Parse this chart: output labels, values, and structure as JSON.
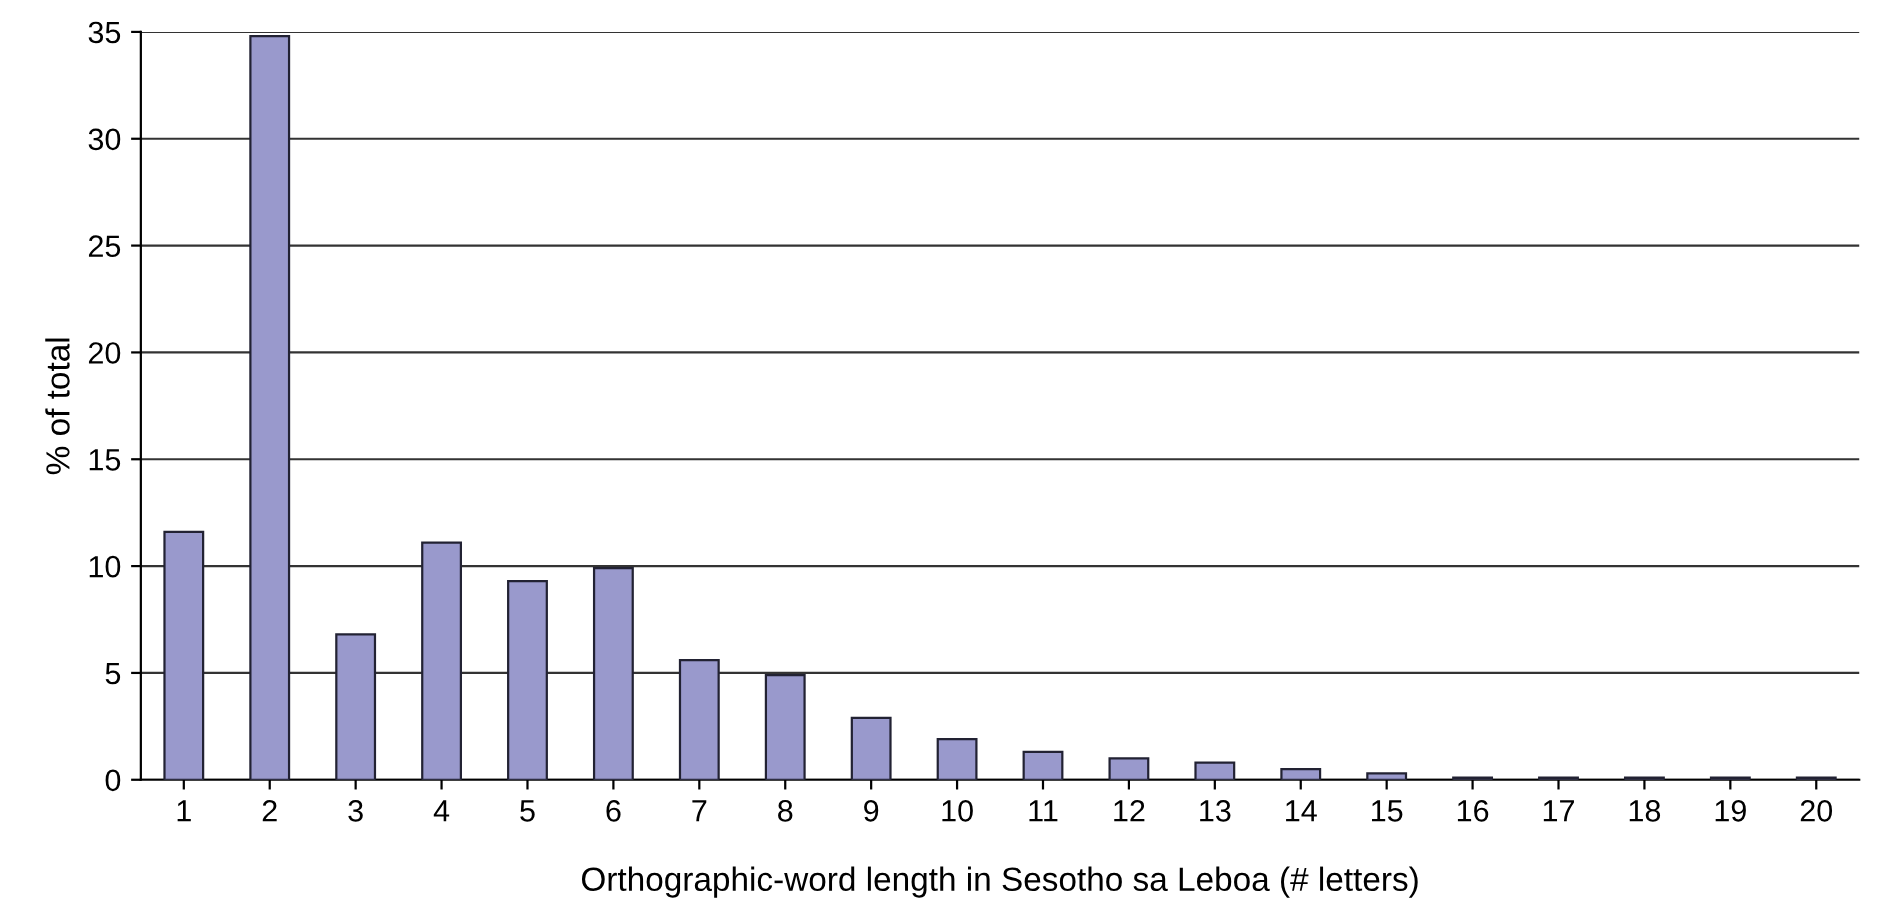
{
  "chart_data": {
    "type": "bar",
    "xlabel": "Orthographic-word length in Sesotho sa Leboa (# letters)",
    "ylabel": "% of total",
    "categories": [
      "1",
      "2",
      "3",
      "4",
      "5",
      "6",
      "7",
      "8",
      "9",
      "10",
      "11",
      "12",
      "13",
      "14",
      "15",
      "16",
      "17",
      "18",
      "19",
      "20"
    ],
    "values": [
      11.6,
      34.8,
      6.8,
      11.1,
      9.3,
      9.9,
      5.6,
      4.9,
      2.9,
      1.9,
      1.3,
      1.0,
      0.8,
      0.5,
      0.3,
      0.1,
      0.1,
      0.1,
      0.1,
      0.1
    ],
    "color": "#9999cc",
    "ylim": [
      0,
      35
    ],
    "yticks": [
      0,
      5,
      10,
      15,
      20,
      25,
      30,
      35
    ],
    "grid": "y"
  }
}
